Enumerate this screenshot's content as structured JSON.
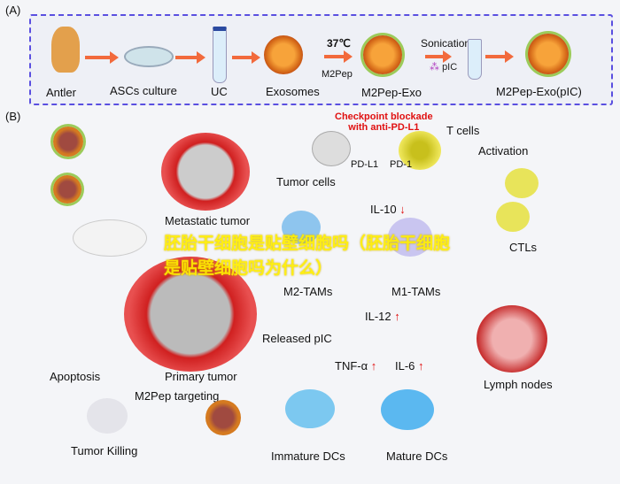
{
  "panelA": {
    "label": "(A)",
    "steps": [
      "Antler",
      "ASCs culture",
      "UC",
      "Exosomes",
      "M2Pep-Exo",
      "M2Pep-Exo(pIC)"
    ],
    "temp": "37℃",
    "peptide": "M2Pep",
    "sonication": "Sonication",
    "pic": "pIC"
  },
  "panelB": {
    "label": "(B)",
    "checkpoint": "Checkpoint blockade\nwith anti-PD-L1",
    "tcells": "T cells",
    "pdl1": "PD-L1",
    "pd1": "PD-1",
    "tumor_cells": "Tumor cells",
    "activation": "Activation",
    "metastatic": "Metastatic tumor",
    "il10": "IL-10",
    "m2tams": "M2-TAMs",
    "m1tams": "M1-TAMs",
    "ctls": "CTLs",
    "il12": "IL-12",
    "released": "Released pIC",
    "primary": "Primary tumor",
    "apoptosis": "Apoptosis",
    "targeting": "M2Pep targeting",
    "tnf": "TNF-α",
    "il6": "IL-6",
    "lymph": "Lymph nodes",
    "killing": "Tumor Killing",
    "immature": "Immature DCs",
    "mature": "Mature DCs",
    "up": "↑",
    "down": "↓"
  },
  "watermark": "胚胎干细胞是贴壁细胞吗（胚胎干细胞是贴壁细胞吗为什么）",
  "colors": {
    "border": "#5a4fe0",
    "arrow": "#f26a3c",
    "red": "#e01010"
  }
}
